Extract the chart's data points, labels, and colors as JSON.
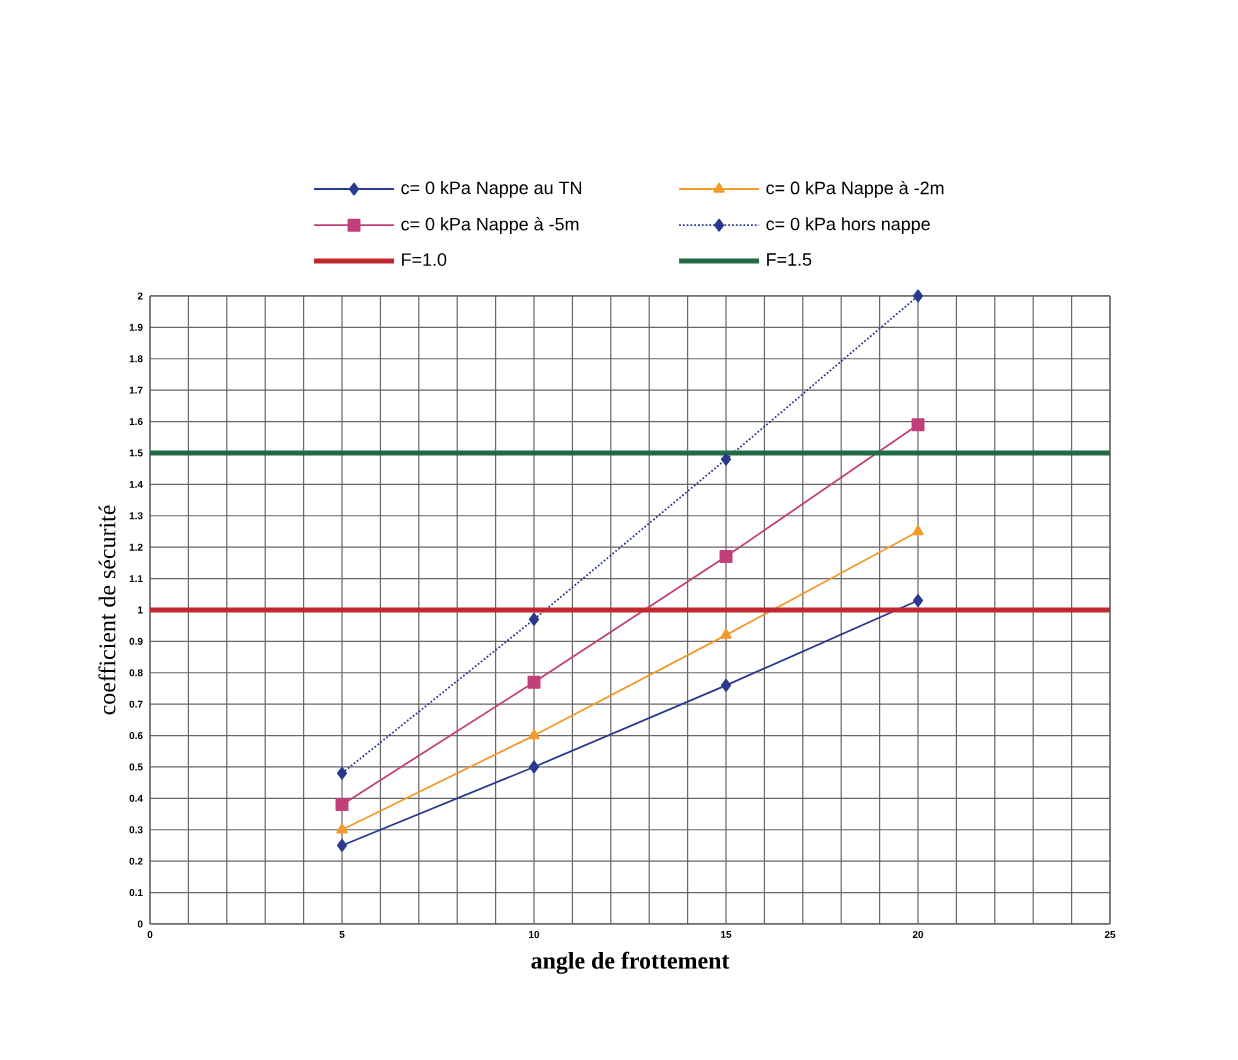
{
  "chart_data": {
    "type": "line",
    "xlabel": "angle de frottement",
    "ylabel": "coefficient de sécurité",
    "x": [
      5,
      10,
      15,
      20
    ],
    "series": [
      {
        "name": "c= 0 kPa Nappe au TN",
        "color": "#2a3a8c",
        "marker": "diamond",
        "line_style": "solid",
        "values": [
          0.25,
          0.5,
          0.76,
          1.03
        ]
      },
      {
        "name": "c= 0 kPa Nappe à -2m",
        "color": "#f39a2b",
        "marker": "triangle",
        "line_style": "solid",
        "values": [
          0.3,
          0.6,
          0.92,
          1.25
        ]
      },
      {
        "name": "c= 0 kPa Nappe à -5m",
        "color": "#c2407a",
        "marker": "square",
        "line_style": "solid",
        "values": [
          0.38,
          0.77,
          1.17,
          1.59
        ]
      },
      {
        "name": "c= 0 kPa hors nappe",
        "color": "#2a3a8c",
        "marker": "diamond",
        "line_style": "dotted",
        "values": [
          0.48,
          0.97,
          1.48,
          2.0
        ]
      }
    ],
    "ref_lines": [
      {
        "axis": "y",
        "value": 1.0,
        "label": "F=1.0",
        "color": "#c0282d"
      },
      {
        "axis": "y",
        "value": 1.5,
        "label": "F=1.5",
        "color": "#1f6b45"
      }
    ],
    "xlim": [
      0,
      25
    ],
    "xticks": [
      0,
      5,
      10,
      15,
      20,
      25
    ],
    "ylim": [
      0,
      2
    ],
    "yticks": [
      0,
      0.1,
      0.2,
      0.3,
      0.4,
      0.5,
      0.6,
      0.7,
      0.8,
      0.9,
      1,
      1.1,
      1.2,
      1.3,
      1.4,
      1.5,
      1.6,
      1.7,
      1.8,
      1.9,
      2
    ],
    "grid": true,
    "legend": "top"
  }
}
